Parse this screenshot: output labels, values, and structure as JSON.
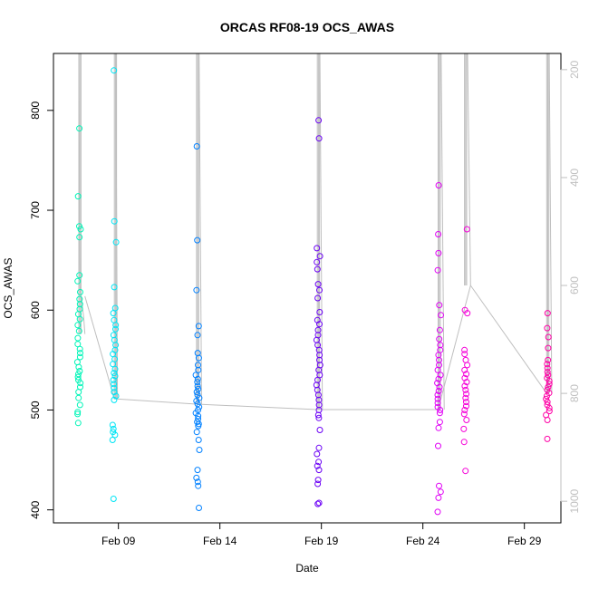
{
  "chart_data": {
    "type": "scatter",
    "title": "ORCAS RF08-19 OCS_AWAS",
    "xlabel": "Date",
    "ylabel": "OCS_AWAS",
    "x_ticks": [
      "Feb 09",
      "Feb 14",
      "Feb 19",
      "Feb 24",
      "Feb 29"
    ],
    "x_tick_days": [
      9,
      14,
      19,
      24,
      29
    ],
    "xlim_days": [
      5.8,
      30.8
    ],
    "ylim": [
      387,
      857
    ],
    "y_ticks": [
      400,
      500,
      600,
      700,
      800
    ],
    "right_axis": {
      "ticks": [
        200,
        400,
        600,
        800,
        1000
      ],
      "range": [
        170,
        1040
      ],
      "inverted": true
    },
    "grid": false,
    "legend": "none",
    "flight_colors": [
      "#00f5b8",
      "#00e5f5",
      "#0080ff",
      "#6b00f5",
      "#e000f5",
      "#f500d8",
      "#ff00a6"
    ],
    "line_color": "#bfbfbf",
    "flights": [
      {
        "day": 7.05,
        "values": [
          782,
          714,
          684,
          681,
          673,
          635,
          629,
          618,
          611,
          606,
          601,
          596,
          591,
          585,
          579,
          572,
          566,
          561,
          557,
          553,
          548,
          543,
          539,
          536,
          533,
          530,
          527,
          523,
          518,
          512,
          505,
          498,
          496,
          487
        ]
      },
      {
        "day": 8.8,
        "values": [
          840,
          689,
          668,
          623,
          602,
          597,
          590,
          585,
          581,
          575,
          570,
          565,
          560,
          556,
          551,
          546,
          541,
          537,
          534,
          530,
          526,
          522,
          518,
          514,
          510,
          485,
          481,
          478,
          475,
          470,
          411
        ]
      },
      {
        "day": 12.9,
        "values": [
          764,
          670,
          620,
          584,
          575,
          557,
          552,
          545,
          540,
          535,
          531,
          528,
          524,
          521,
          518,
          515,
          512,
          509,
          506,
          503,
          500,
          497,
          494,
          491,
          488,
          486,
          484,
          478,
          470,
          460,
          440,
          432,
          428,
          424,
          402
        ]
      },
      {
        "day": 18.85,
        "values": [
          790,
          772,
          662,
          654,
          648,
          641,
          626,
          620,
          612,
          598,
          590,
          586,
          580,
          575,
          570,
          565,
          560,
          555,
          550,
          545,
          540,
          535,
          530,
          525,
          520,
          515,
          510,
          505,
          500,
          495,
          492,
          480,
          462,
          456,
          448,
          444,
          440,
          430,
          426,
          407,
          406
        ]
      },
      {
        "day": 24.8,
        "values": [
          725,
          676,
          657,
          640,
          605,
          595,
          580,
          571,
          565,
          560,
          555,
          550,
          545,
          540,
          535,
          531,
          527,
          523,
          519,
          515,
          511,
          507,
          503,
          500,
          497,
          488,
          482,
          464,
          424,
          418,
          412,
          398
        ]
      },
      {
        "day": 26.1,
        "values": [
          681,
          600,
          597,
          560,
          556,
          550,
          545,
          540,
          536,
          532,
          528,
          524,
          520,
          516,
          512,
          508,
          504,
          500,
          496,
          490,
          481,
          468,
          439
        ]
      },
      {
        "day": 30.15,
        "values": [
          597,
          582,
          573,
          562,
          550,
          546,
          542,
          538,
          535,
          532,
          529,
          526,
          523,
          520,
          517,
          514,
          511,
          508,
          505,
          502,
          499,
          495,
          490,
          471
        ]
      }
    ],
    "altitude_profiles": [
      {
        "day_start": 7.05,
        "day_end": 7.35,
        "values": [
          170,
          600,
          620,
          640,
          660,
          690
        ]
      },
      {
        "day_start": 8.8,
        "day_end": 8.95,
        "values": [
          170,
          170,
          810
        ]
      },
      {
        "day_start": 12.85,
        "day_end": 13.1,
        "values": [
          170,
          170,
          820
        ]
      },
      {
        "day_start": 18.8,
        "day_end": 19.05,
        "values": [
          170,
          170,
          830
        ]
      },
      {
        "day_start": 24.75,
        "day_end": 25.05,
        "values": [
          170,
          170,
          830
        ]
      },
      {
        "day_start": 26.05,
        "day_end": 26.35,
        "values": [
          170,
          170,
          600
        ]
      },
      {
        "day_start": 30.1,
        "day_end": 30.35,
        "values": [
          170,
          170,
          800
        ]
      }
    ],
    "connector_line": [
      [
        7.35,
        620
      ],
      [
        8.8,
        810
      ],
      [
        12.85,
        820
      ],
      [
        18.8,
        830
      ],
      [
        24.75,
        830
      ],
      [
        26.35,
        600
      ],
      [
        30.1,
        800
      ]
    ]
  }
}
